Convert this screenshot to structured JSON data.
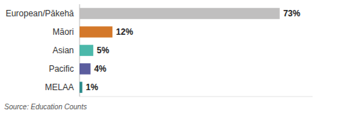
{
  "chart_data": {
    "type": "bar",
    "orientation": "horizontal",
    "categories": [
      "European/Pākehā",
      "Māori",
      "Asian",
      "Pacific",
      "MELAA"
    ],
    "values": [
      73,
      12,
      5,
      4,
      1
    ],
    "value_labels": [
      "73%",
      "12%",
      "5%",
      "4%",
      "1%"
    ],
    "colors": [
      "#c0bfbf",
      "#d4782a",
      "#4bb8aa",
      "#5b5d9e",
      "#2e8c8c"
    ],
    "xlim": [
      0,
      85
    ],
    "data_labels": true,
    "tick_labels": "y",
    "grid": false,
    "annotations": [
      "Source: Education Counts"
    ]
  }
}
